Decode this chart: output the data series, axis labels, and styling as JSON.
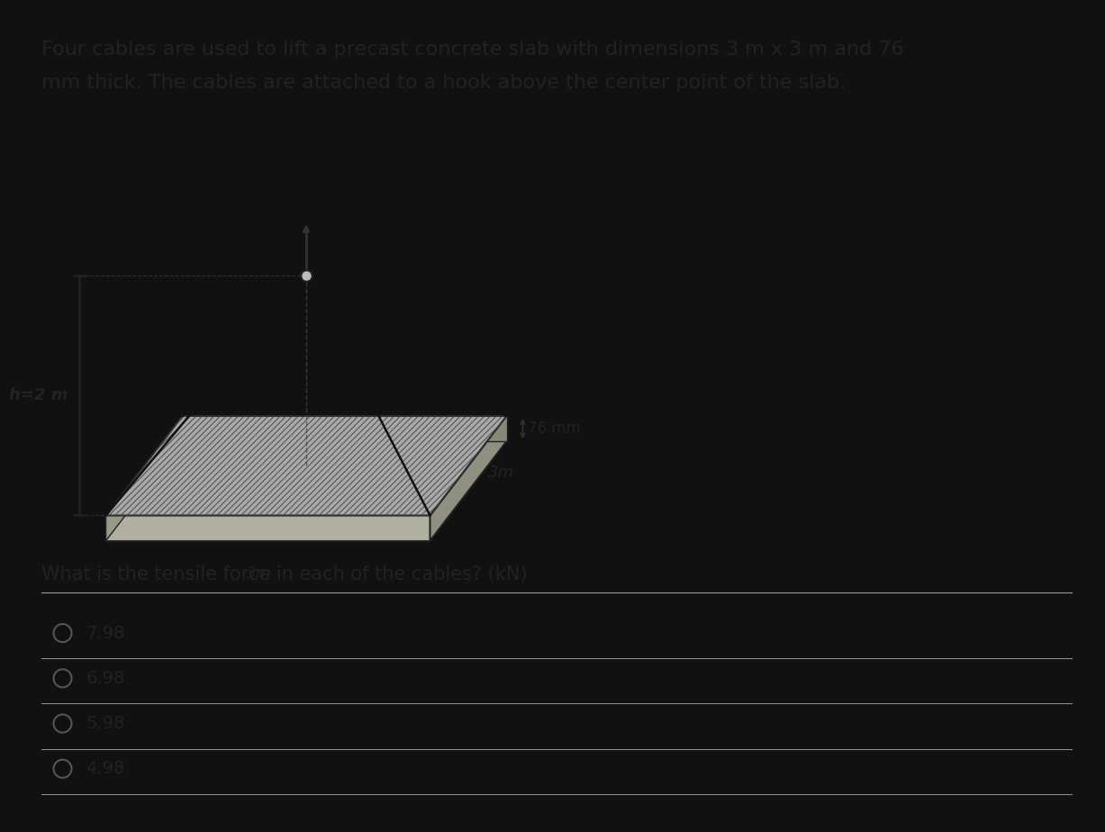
{
  "title_line1": "Four cables are used to lift a precast concrete slab with dimensions 3 m x 3 m and 76",
  "title_line2": "mm thick. The cables are attached to a hook above the center point of the slab.",
  "question": "What is the tensile force in each of the cables? (kN)",
  "options": [
    "7.98",
    "6.98",
    "5.98",
    "4.98"
  ],
  "label_h": "h=2 m",
  "label_76": "76 mm",
  "label_3m_right": "3m",
  "label_3m_bottom": "3m",
  "panel_bg": "#d0d0d0",
  "black_bg": "#111111",
  "text_color": "#222222",
  "cable_color": "#111111",
  "slab_top_color": "#a8a898",
  "slab_side_color": "#888878",
  "slab_front_color": "#999988",
  "title_fontsize": 16,
  "question_fontsize": 15,
  "option_fontsize": 14
}
